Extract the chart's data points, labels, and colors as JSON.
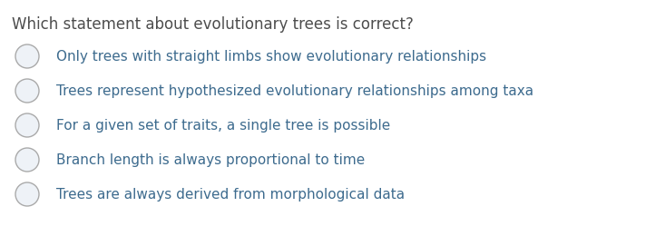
{
  "title": "Which statement about evolutionary trees is correct?",
  "title_color": "#4a6741",
  "title_fontsize": 12,
  "options": [
    "Only trees with straight limbs show evolutionary relationships",
    "Trees represent hypothesized evolutionary relationships among taxa",
    "For a given set of traits, a single tree is possible",
    "Branch length is always proportional to time",
    "Trees are always derived from morphological data"
  ],
  "option_color": "#3d6b8e",
  "title_text_color": "#4d4d4d",
  "option_fontsize": 11,
  "background_color": "#ffffff",
  "circle_edge_color": "#aaaaaa",
  "circle_fill_color": "#eef2f7"
}
